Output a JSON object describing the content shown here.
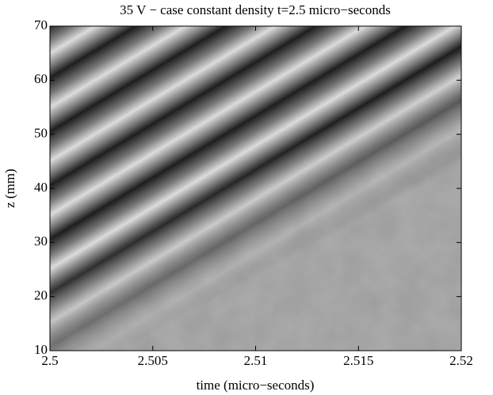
{
  "chart_data": {
    "type": "heatmap",
    "title": "35 V − case constant density  t=2.5 micro−seconds",
    "x_label": "time (micro−seconds)",
    "y_label": "z (mm)",
    "xlim": [
      2.5,
      2.52
    ],
    "xticks": [
      2.5,
      2.505,
      2.51,
      2.515,
      2.52
    ],
    "ylim": [
      10,
      70
    ],
    "yticks": [
      10,
      20,
      30,
      40,
      50,
      60,
      70
    ],
    "colormap": "gray"
  }
}
